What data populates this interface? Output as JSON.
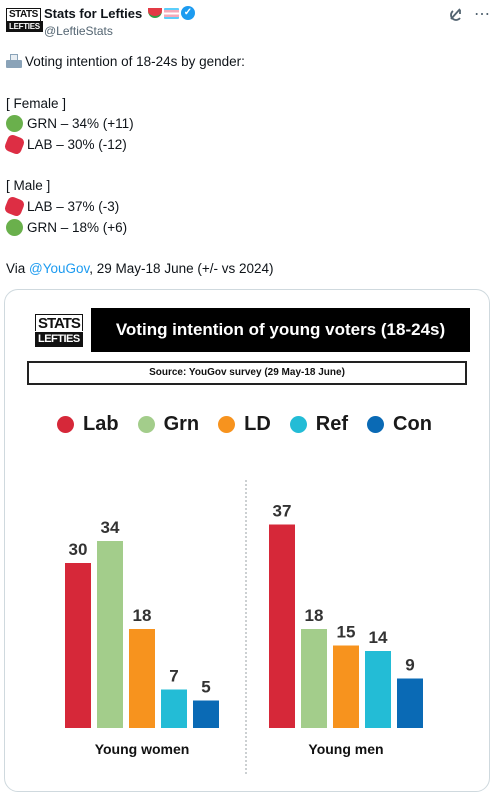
{
  "post": {
    "display_name": "Stats for Lefties",
    "handle": "@LeftieStats",
    "avatar_text_top": "STATS",
    "avatar_text_bottom": "LEFTIES",
    "icons": [
      "watermelon-emoji",
      "trans-flag-emoji",
      "verified-badge",
      "grok-icon",
      "more-icon"
    ]
  },
  "tweet": {
    "heading": "Voting intention of 18-24s by gender:",
    "female_header": "[ Female ]",
    "female_lines": [
      {
        "color": "green",
        "text": "GRN – 34% (+11)"
      },
      {
        "color": "red",
        "text": "LAB – 30% (-12)"
      }
    ],
    "male_header": "[ Male ]",
    "male_lines": [
      {
        "color": "red",
        "text": "LAB – 37% (-3)"
      },
      {
        "color": "green",
        "text": "GRN – 18% (+6)"
      }
    ],
    "via_prefix": "Via ",
    "via_mention": "@YouGov",
    "via_suffix": ", 29 May-18 June (+/- vs 2024)"
  },
  "card": {
    "logo_top": "STATS",
    "logo_bottom": "LEFTIES",
    "title": "Voting intention of young voters (18-24s)",
    "source": "Source: YouGov survey (29 May-18 June)"
  },
  "chart_data": {
    "type": "bar",
    "title": "Voting intention of young voters (18-24s)",
    "subtitle": "Source: YouGov survey (29 May-18 June)",
    "legend": [
      {
        "name": "Lab",
        "color": "#d62839"
      },
      {
        "name": "Grn",
        "color": "#a3cd8b"
      },
      {
        "name": "LD",
        "color": "#f7931e"
      },
      {
        "name": "Ref",
        "color": "#23bcd6"
      },
      {
        "name": "Con",
        "color": "#0a6ab5"
      }
    ],
    "legend_position": "top",
    "grid": false,
    "panels": [
      {
        "label": "Young women",
        "bars": [
          {
            "party": "Lab",
            "value": 30,
            "color": "#d62839"
          },
          {
            "party": "Grn",
            "value": 34,
            "color": "#a3cd8b"
          },
          {
            "party": "LD",
            "value": 18,
            "color": "#f7931e"
          },
          {
            "party": "Ref",
            "value": 7,
            "color": "#23bcd6"
          },
          {
            "party": "Con",
            "value": 5,
            "color": "#0a6ab5"
          }
        ]
      },
      {
        "label": "Young men",
        "bars": [
          {
            "party": "Lab",
            "value": 37,
            "color": "#d62839"
          },
          {
            "party": "Grn",
            "value": 18,
            "color": "#a3cd8b"
          },
          {
            "party": "LD",
            "value": 15,
            "color": "#f7931e"
          },
          {
            "party": "Ref",
            "value": 14,
            "color": "#23bcd6"
          },
          {
            "party": "Con",
            "value": 9,
            "color": "#0a6ab5"
          }
        ]
      }
    ]
  }
}
